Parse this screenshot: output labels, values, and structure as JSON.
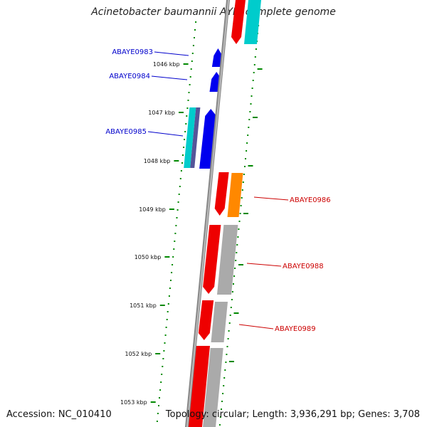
{
  "title": "Acinetobacter baumannii AYE, complete genome",
  "accession": "Accession: NC_010410",
  "summary": "Topology: circular; Length: 3,936,291 bp; Genes: 3,708",
  "colors": {
    "forward_cds": "#ee0000",
    "reverse_cds": "#0000ee",
    "orange_cds": "#ff8800",
    "cyan_cds": "#00cccc",
    "grey_cds": "#aaaaaa",
    "tick": "#008800",
    "backbone": "#777777",
    "label_blue": "#0000cc",
    "label_red": "#cc0000"
  },
  "ticks": [
    "1046 kbp",
    "1047 kbp",
    "1048 kbp",
    "1049 kbp",
    "1050 kbp",
    "1051 kbp",
    "1052 kbp",
    "1053 kbp"
  ],
  "genes": [
    {
      "label": "ABAYE0983",
      "strand": "reverse"
    },
    {
      "label": "ABAYE0984",
      "strand": "reverse"
    },
    {
      "label": "ABAYE0985",
      "strand": "reverse"
    },
    {
      "label": "ABAYE0986",
      "strand": "forward"
    },
    {
      "label": "ABAYE0988",
      "strand": "forward"
    },
    {
      "label": "ABAYE0989",
      "strand": "forward"
    }
  ]
}
